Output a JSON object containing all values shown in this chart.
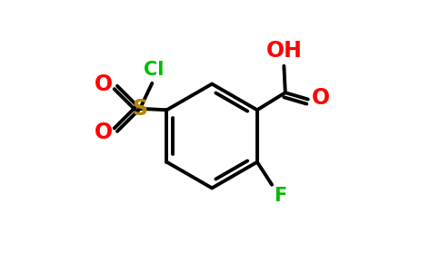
{
  "background_color": "#ffffff",
  "bond_color": "#000000",
  "bond_width": 2.8,
  "atom_colors": {
    "S": "#b8860b",
    "O": "#ff0000",
    "Cl": "#00bb00",
    "F": "#00bb00"
  },
  "atom_fontsizes": {
    "S": 17,
    "O": 17,
    "Cl": 15,
    "F": 15,
    "OH": 17
  },
  "figsize": [
    4.84,
    3.0
  ],
  "dpi": 100
}
